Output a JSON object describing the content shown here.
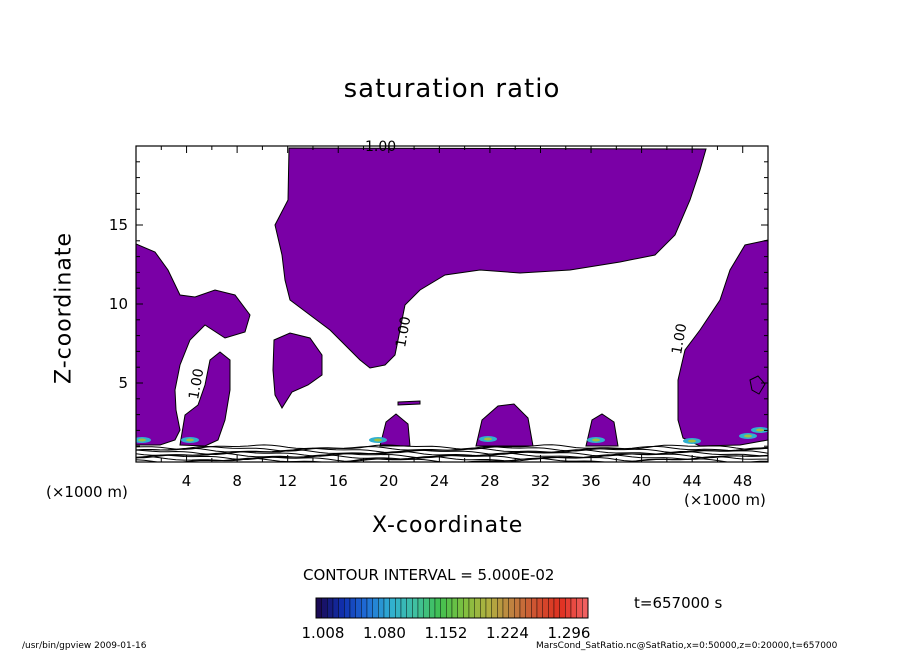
{
  "chart_data": {
    "type": "contour",
    "title": "saturation ratio",
    "xlabel": "X-coordinate",
    "ylabel": "Z-coordinate",
    "x_unit_label": "(×1000 m)",
    "xlim": [
      0,
      50
    ],
    "ylim": [
      0,
      20
    ],
    "xticks": [
      4,
      8,
      12,
      16,
      20,
      24,
      28,
      32,
      36,
      40,
      44,
      48
    ],
    "yticks": [
      5,
      10,
      15
    ],
    "contour_label": "1.00",
    "contour_interval_text": "CONTOUR INTERVAL = 5.000E-02",
    "fill_color": "#7a00a6",
    "colorbar": {
      "tick_labels": [
        "1.008",
        "1.080",
        "1.152",
        "1.224",
        "1.296"
      ],
      "colors": [
        "#1a0a55",
        "#1030b0",
        "#2070d8",
        "#30b0d0",
        "#40c0a0",
        "#40c050",
        "#80c040",
        "#b0b040",
        "#c08040",
        "#d05030",
        "#e03020",
        "#f06060"
      ]
    },
    "time_label": "t=657000 s",
    "footer_left": "/usr/bin/gpview   2009-01-16",
    "footer_right": "MarsCond_SatRatio.nc@SatRatio,x=0:50000,z=0:20000,t=657000"
  }
}
